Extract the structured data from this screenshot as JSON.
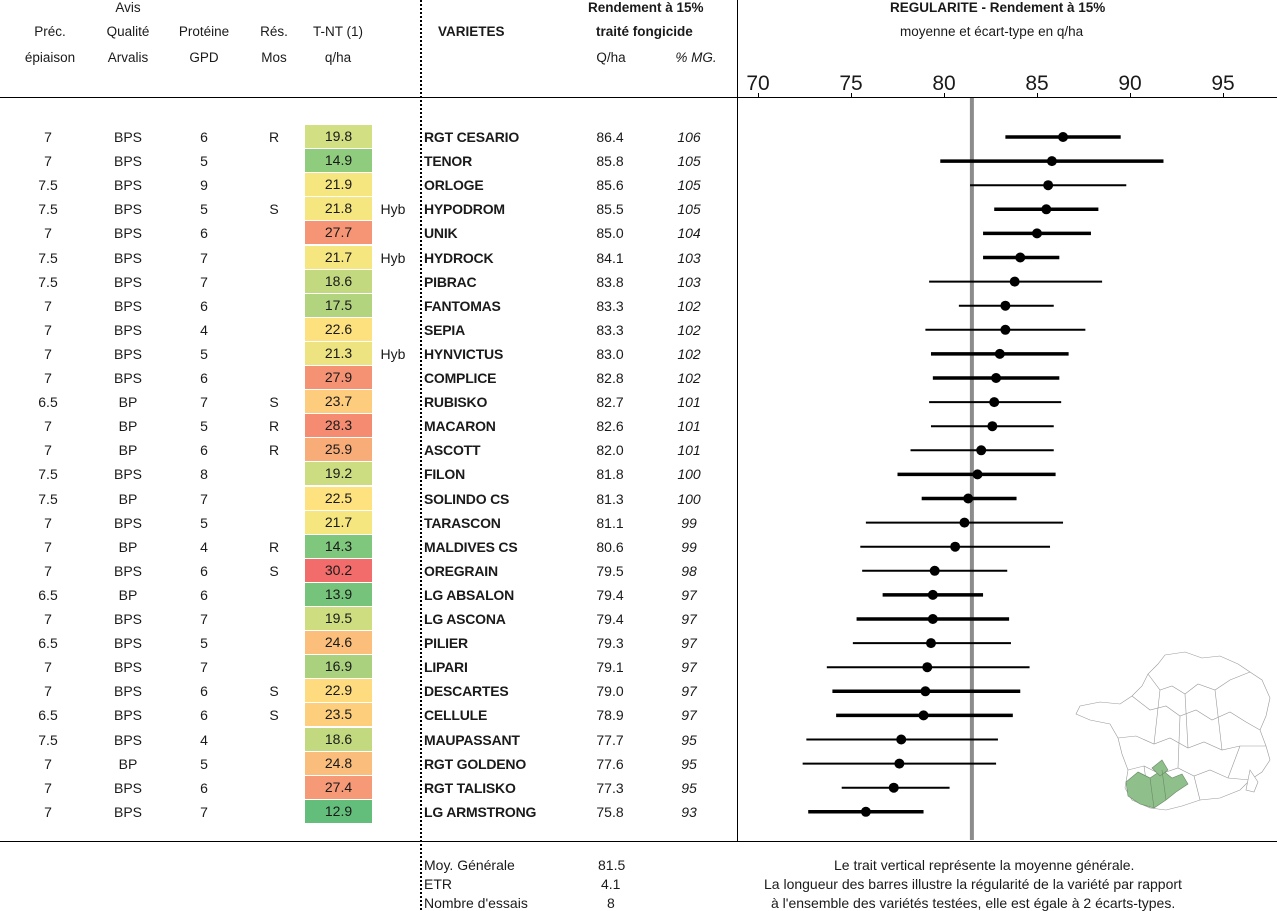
{
  "headers": {
    "avis": "Avis",
    "prec": "Préc.",
    "epiaison": "épiaison",
    "qualite": "Qualité",
    "arvalis": "Arvalis",
    "proteine": "Protéine",
    "gpd": "GPD",
    "res": "Rés.",
    "mos": "Mos",
    "tnt": "T-NT (1)",
    "qha": "q/ha",
    "varietes": "VARIETES",
    "rendement": "Rendement à 15%",
    "traite": "traité fongicide",
    "qha2": "Q/ha",
    "mg": "% MG.",
    "regularite": "REGULARITE - Rendement à 15%",
    "moyenne": "moyenne et écart-type en q/ha"
  },
  "axis": {
    "ticks": [
      "70",
      "75",
      "80",
      "85",
      "90",
      "95"
    ],
    "min": 70,
    "max": 95,
    "mean": 81.5
  },
  "rows": [
    {
      "prec": "7",
      "qual": "BPS",
      "prot": "6",
      "res": "R",
      "tnt": "19.8",
      "tnt_color": "#d2df82",
      "hyb": "",
      "name": "RGT CESARIO",
      "q": "86.4",
      "mg": "106",
      "mean": 86.4,
      "lo": 83.3,
      "hi": 89.5,
      "thick": true
    },
    {
      "prec": "7",
      "qual": "BPS",
      "prot": "5",
      "res": "",
      "tnt": "14.9",
      "tnt_color": "#8fcc7d",
      "hyb": "",
      "name": "TENOR",
      "q": "85.8",
      "mg": "105",
      "mean": 85.8,
      "lo": 79.8,
      "hi": 91.8,
      "thick": true
    },
    {
      "prec": "7.5",
      "qual": "BPS",
      "prot": "9",
      "res": "",
      "tnt": "21.9",
      "tnt_color": "#f6e680",
      "hyb": "",
      "name": "ORLOGE",
      "q": "85.6",
      "mg": "105",
      "mean": 85.6,
      "lo": 81.4,
      "hi": 89.8,
      "thick": false
    },
    {
      "prec": "7.5",
      "qual": "BPS",
      "prot": "5",
      "res": "S",
      "tnt": "21.8",
      "tnt_color": "#f6e680",
      "hyb": "Hyb",
      "name": "HYPODROM",
      "q": "85.5",
      "mg": "105",
      "mean": 85.5,
      "lo": 82.7,
      "hi": 88.3,
      "thick": true
    },
    {
      "prec": "7",
      "qual": "BPS",
      "prot": "6",
      "res": "",
      "tnt": "27.7",
      "tnt_color": "#f69575",
      "hyb": "",
      "name": "UNIK",
      "q": "85.0",
      "mg": "104",
      "mean": 85.0,
      "lo": 82.1,
      "hi": 87.9,
      "thick": true
    },
    {
      "prec": "7.5",
      "qual": "BPS",
      "prot": "7",
      "res": "",
      "tnt": "21.7",
      "tnt_color": "#f5e680",
      "hyb": "Hyb",
      "name": "HYDROCK",
      "q": "84.1",
      "mg": "103",
      "mean": 84.1,
      "lo": 82.1,
      "hi": 86.2,
      "thick": true
    },
    {
      "prec": "7.5",
      "qual": "BPS",
      "prot": "7",
      "res": "",
      "tnt": "18.6",
      "tnt_color": "#c3d980",
      "hyb": "",
      "name": "PIBRAC",
      "q": "83.8",
      "mg": "103",
      "mean": 83.8,
      "lo": 79.2,
      "hi": 88.5,
      "thick": false
    },
    {
      "prec": "7",
      "qual": "BPS",
      "prot": "6",
      "res": "",
      "tnt": "17.5",
      "tnt_color": "#b3d47e",
      "hyb": "",
      "name": "FANTOMAS",
      "q": "83.3",
      "mg": "102",
      "mean": 83.3,
      "lo": 80.8,
      "hi": 85.9,
      "thick": false
    },
    {
      "prec": "7",
      "qual": "BPS",
      "prot": "4",
      "res": "",
      "tnt": "22.6",
      "tnt_color": "#fde17f",
      "hyb": "",
      "name": "SEPIA",
      "q": "83.3",
      "mg": "102",
      "mean": 83.3,
      "lo": 79.0,
      "hi": 87.6,
      "thick": false
    },
    {
      "prec": "7",
      "qual": "BPS",
      "prot": "5",
      "res": "",
      "tnt": "21.3",
      "tnt_color": "#ede481",
      "hyb": "Hyb",
      "name": "HYNVICTUS",
      "q": "83.0",
      "mg": "102",
      "mean": 83.0,
      "lo": 79.3,
      "hi": 86.7,
      "thick": true
    },
    {
      "prec": "7",
      "qual": "BPS",
      "prot": "6",
      "res": "",
      "tnt": "27.9",
      "tnt_color": "#f59273",
      "hyb": "",
      "name": "COMPLICE",
      "q": "82.8",
      "mg": "102",
      "mean": 82.8,
      "lo": 79.4,
      "hi": 86.2,
      "thick": true
    },
    {
      "prec": "6.5",
      "qual": "BP",
      "prot": "7",
      "res": "S",
      "tnt": "23.7",
      "tnt_color": "#fdcc7d",
      "hyb": "",
      "name": "RUBISKO",
      "q": "82.7",
      "mg": "101",
      "mean": 82.7,
      "lo": 79.2,
      "hi": 86.3,
      "thick": false
    },
    {
      "prec": "7",
      "qual": "BP",
      "prot": "5",
      "res": "R",
      "tnt": "28.3",
      "tnt_color": "#f58c72",
      "hyb": "",
      "name": "MACARON",
      "q": "82.6",
      "mg": "101",
      "mean": 82.6,
      "lo": 79.3,
      "hi": 85.9,
      "thick": false
    },
    {
      "prec": "7",
      "qual": "BP",
      "prot": "6",
      "res": "R",
      "tnt": "25.9",
      "tnt_color": "#f8ad79",
      "hyb": "",
      "name": "ASCOTT",
      "q": "82.0",
      "mg": "101",
      "mean": 82.0,
      "lo": 78.2,
      "hi": 85.9,
      "thick": false
    },
    {
      "prec": "7.5",
      "qual": "BPS",
      "prot": "8",
      "res": "",
      "tnt": "19.2",
      "tnt_color": "#cbdc81",
      "hyb": "",
      "name": "FILON",
      "q": "81.8",
      "mg": "100",
      "mean": 81.8,
      "lo": 77.5,
      "hi": 86.0,
      "thick": true
    },
    {
      "prec": "7.5",
      "qual": "BP",
      "prot": "7",
      "res": "",
      "tnt": "22.5",
      "tnt_color": "#fde27f",
      "hyb": "",
      "name": "SOLINDO CS",
      "q": "81.3",
      "mg": "100",
      "mean": 81.3,
      "lo": 78.8,
      "hi": 83.9,
      "thick": true
    },
    {
      "prec": "7",
      "qual": "BPS",
      "prot": "5",
      "res": "",
      "tnt": "21.7",
      "tnt_color": "#f5e680",
      "hyb": "",
      "name": "TARASCON",
      "q": "81.1",
      "mg": "99",
      "mean": 81.1,
      "lo": 75.8,
      "hi": 86.4,
      "thick": false
    },
    {
      "prec": "7",
      "qual": "BP",
      "prot": "4",
      "res": "R",
      "tnt": "14.3",
      "tnt_color": "#7fc77c",
      "hyb": "",
      "name": "MALDIVES CS",
      "q": "80.6",
      "mg": "99",
      "mean": 80.6,
      "lo": 75.5,
      "hi": 85.7,
      "thick": false
    },
    {
      "prec": "7",
      "qual": "BPS",
      "prot": "6",
      "res": "S",
      "tnt": "30.2",
      "tnt_color": "#f16c6b",
      "hyb": "",
      "name": "OREGRAIN",
      "q": "79.5",
      "mg": "98",
      "mean": 79.5,
      "lo": 75.6,
      "hi": 83.4,
      "thick": false
    },
    {
      "prec": "6.5",
      "qual": "BP",
      "prot": "6",
      "res": "",
      "tnt": "13.9",
      "tnt_color": "#76c47b",
      "hyb": "",
      "name": "LG ABSALON",
      "q": "79.4",
      "mg": "97",
      "mean": 79.4,
      "lo": 76.7,
      "hi": 82.1,
      "thick": true
    },
    {
      "prec": "7",
      "qual": "BPS",
      "prot": "7",
      "res": "",
      "tnt": "19.5",
      "tnt_color": "#cfdd81",
      "hyb": "",
      "name": "LG ASCONA",
      "q": "79.4",
      "mg": "97",
      "mean": 79.4,
      "lo": 75.3,
      "hi": 83.5,
      "thick": true
    },
    {
      "prec": "6.5",
      "qual": "BPS",
      "prot": "5",
      "res": "",
      "tnt": "24.6",
      "tnt_color": "#fbbf7b",
      "hyb": "",
      "name": "PILIER",
      "q": "79.3",
      "mg": "97",
      "mean": 79.3,
      "lo": 75.1,
      "hi": 83.6,
      "thick": false
    },
    {
      "prec": "7",
      "qual": "BPS",
      "prot": "7",
      "res": "",
      "tnt": "16.9",
      "tnt_color": "#a9d17e",
      "hyb": "",
      "name": "LIPARI",
      "q": "79.1",
      "mg": "97",
      "mean": 79.1,
      "lo": 73.7,
      "hi": 84.6,
      "thick": false
    },
    {
      "prec": "7",
      "qual": "BPS",
      "prot": "6",
      "res": "S",
      "tnt": "22.9",
      "tnt_color": "#fddb7e",
      "hyb": "",
      "name": "DESCARTES",
      "q": "79.0",
      "mg": "97",
      "mean": 79.0,
      "lo": 74.0,
      "hi": 84.1,
      "thick": true
    },
    {
      "prec": "6.5",
      "qual": "BPS",
      "prot": "6",
      "res": "S",
      "tnt": "23.5",
      "tnt_color": "#fdcf7d",
      "hyb": "",
      "name": "CELLULE",
      "q": "78.9",
      "mg": "97",
      "mean": 78.9,
      "lo": 74.2,
      "hi": 83.7,
      "thick": true
    },
    {
      "prec": "7.5",
      "qual": "BPS",
      "prot": "4",
      "res": "",
      "tnt": "18.6",
      "tnt_color": "#c3d980",
      "hyb": "",
      "name": "MAUPASSANT",
      "q": "77.7",
      "mg": "95",
      "mean": 77.7,
      "lo": 72.6,
      "hi": 82.9,
      "thick": false
    },
    {
      "prec": "7",
      "qual": "BP",
      "prot": "5",
      "res": "",
      "tnt": "24.8",
      "tnt_color": "#fabd7b",
      "hyb": "",
      "name": "RGT GOLDENO",
      "q": "77.6",
      "mg": "95",
      "mean": 77.6,
      "lo": 72.4,
      "hi": 82.8,
      "thick": false
    },
    {
      "prec": "7",
      "qual": "BPS",
      "prot": "6",
      "res": "",
      "tnt": "27.4",
      "tnt_color": "#f69976",
      "hyb": "",
      "name": "RGT TALISKO",
      "q": "77.3",
      "mg": "95",
      "mean": 77.3,
      "lo": 74.5,
      "hi": 80.3,
      "thick": false
    },
    {
      "prec": "7",
      "qual": "BPS",
      "prot": "7",
      "res": "",
      "tnt": "12.9",
      "tnt_color": "#63be7b",
      "hyb": "",
      "name": "LG ARMSTRONG",
      "q": "75.8",
      "mg": "93",
      "mean": 75.8,
      "lo": 72.7,
      "hi": 78.9,
      "thick": true
    }
  ],
  "footer": {
    "moy_label": "Moy. Générale",
    "moy_value": "81.5",
    "etr_label": "ETR",
    "etr_value": "4.1",
    "essais_label": "Nombre d'essais",
    "essais_value": "8",
    "note1": "Le trait vertical représente la moyenne générale.",
    "note2": "La longueur des barres illustre la régularité de la variété par rapport",
    "note3": "à l'ensemble des variétés testées, elle est égale à 2 écarts-types."
  },
  "colors": {
    "mean_line": "#8c8c8c",
    "map_highlight": "#8fbf8a"
  }
}
